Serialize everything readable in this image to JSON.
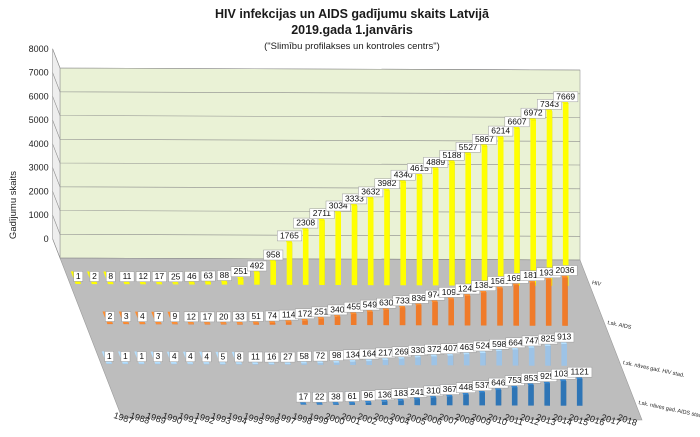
{
  "chart_data": {
    "type": "bar",
    "title": "HIV infekcijas un AIDS gadījumu skaits Latvijā",
    "subtitle": "2019.gada 1.janvāris",
    "source_note": "(\"Slimību profilakses un kontroles centrs\")",
    "ylabel": "Gadījumu skaits",
    "ylim": [
      0,
      8000
    ],
    "yticks": [
      0,
      1000,
      2000,
      3000,
      4000,
      5000,
      6000,
      7000,
      8000
    ],
    "grid": true,
    "categories": [
      "1987",
      "1988",
      "1989",
      "1990",
      "1991",
      "1992",
      "1993",
      "1994",
      "1995",
      "1996",
      "1997",
      "1998",
      "1999",
      "2000",
      "2001",
      "2002",
      "2003",
      "2004",
      "2005",
      "2006",
      "2007",
      "2008",
      "2009",
      "2010",
      "2011",
      "2012",
      "2013",
      "2014",
      "2015",
      "2016",
      "2017",
      "2018"
    ],
    "series": [
      {
        "name": "HIV",
        "color": "#ffff00",
        "values": [
          1,
          2,
          8,
          11,
          12,
          17,
          25,
          46,
          63,
          88,
          251,
          492,
          958,
          1765,
          2308,
          2711,
          3034,
          3333,
          3632,
          3982,
          4340,
          4615,
          4889,
          5188,
          5527,
          5867,
          6214,
          6607,
          6972,
          7343,
          7669,
          null
        ]
      },
      {
        "name": "t.sk. AIDS",
        "color": "#f07b2a",
        "values": [
          null,
          2,
          3,
          4,
          7,
          9,
          12,
          17,
          20,
          33,
          51,
          74,
          114,
          172,
          251,
          340,
          455,
          549,
          630,
          733,
          836,
          974,
          1093,
          1242,
          1383,
          1560,
          1696,
          1811,
          1937,
          2036,
          null,
          null
        ]
      },
      {
        "name": "t.sk. nāves gad. HIV stad.",
        "color": "#9dc3e6",
        "values": [
          1,
          1,
          1,
          3,
          4,
          4,
          4,
          5,
          8,
          11,
          16,
          27,
          58,
          72,
          98,
          134,
          164,
          217,
          269,
          330,
          372,
          407,
          463,
          524,
          598,
          664,
          747,
          825,
          913,
          null,
          null,
          null
        ]
      },
      {
        "name": "t.sk. nāves gad. AIDS stad.",
        "color": "#2e75b6",
        "values": [
          null,
          null,
          null,
          null,
          null,
          null,
          null,
          null,
          null,
          null,
          null,
          17,
          22,
          38,
          61,
          96,
          136,
          183,
          241,
          310,
          367,
          448,
          537,
          646,
          753,
          853,
          929,
          1032,
          1121,
          null,
          null,
          null
        ]
      }
    ]
  }
}
